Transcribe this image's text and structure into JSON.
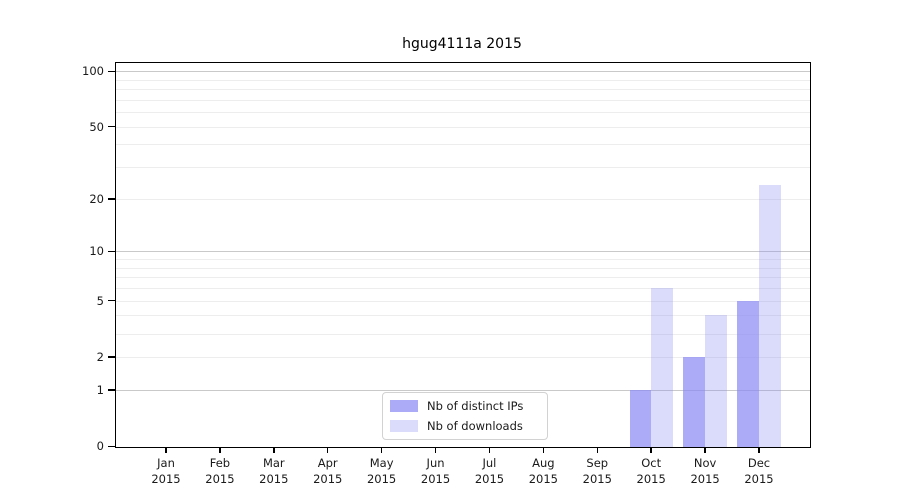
{
  "title": "hgug4111a 2015",
  "chart_data": {
    "type": "bar",
    "categories": [
      "Jan",
      "Feb",
      "Mar",
      "Apr",
      "May",
      "Jun",
      "Jul",
      "Aug",
      "Sep",
      "Oct",
      "Nov",
      "Dec"
    ],
    "year": "2015",
    "series": [
      {
        "name": "Nb of distinct IPs",
        "color_rgb": "136,136,245",
        "alpha": 0.7,
        "values": [
          0,
          0,
          0,
          0,
          0,
          0,
          0,
          0,
          0,
          1,
          2,
          5
        ]
      },
      {
        "name": "Nb of downloads",
        "color_rgb": "136,136,245",
        "alpha": 0.3,
        "values": [
          0,
          0,
          0,
          0,
          0,
          0,
          0,
          0,
          0,
          6,
          4,
          24
        ]
      }
    ],
    "yscale": "log10(1+v)",
    "ylim": [
      0,
      100
    ],
    "yticks": [
      0,
      1,
      2,
      5,
      10,
      20,
      50,
      100
    ],
    "major_grid": [
      1,
      10,
      100
    ],
    "minor_grid": [
      2,
      3,
      4,
      5,
      6,
      7,
      8,
      9,
      20,
      30,
      40,
      50,
      60,
      70,
      80,
      90
    ],
    "grid": true,
    "legend_position": "bottom-center"
  },
  "colors": {
    "major_grid": "#c9c9c9",
    "minor_grid": "#ededed",
    "spine": "#000000",
    "text": "#1a1a1a"
  }
}
